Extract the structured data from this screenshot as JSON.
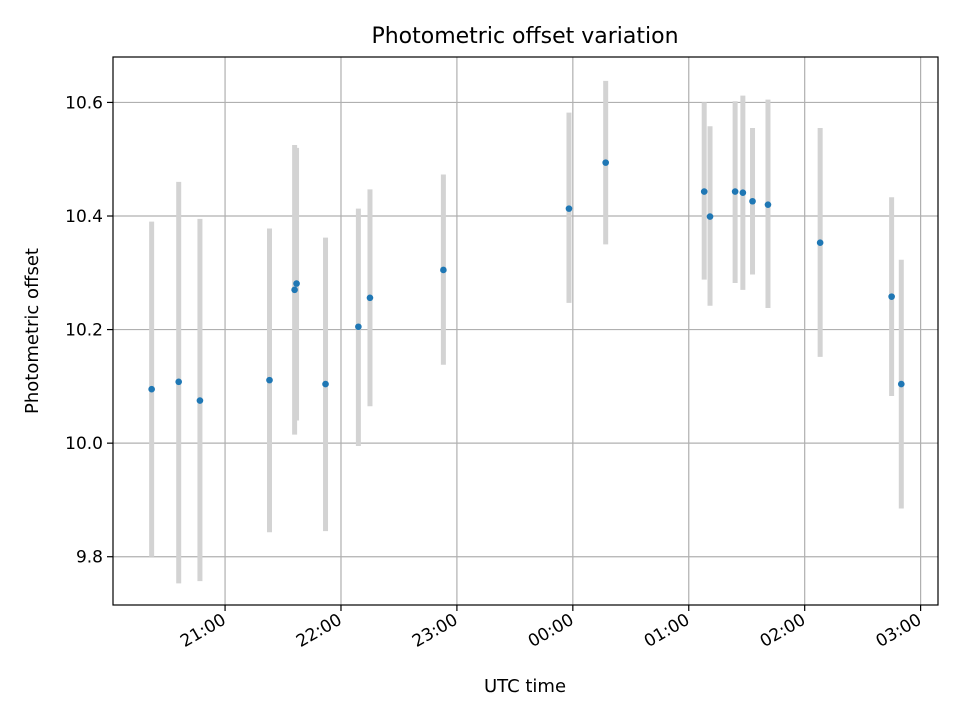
{
  "chart_data": {
    "type": "scatter",
    "title": "Photometric offset variation",
    "xlabel": "UTC time",
    "ylabel": "Photometric offset",
    "grid": true,
    "xlim": [
      "20:02",
      "03:09"
    ],
    "ylim": [
      9.715,
      10.68
    ],
    "x_ticks": [
      "21:00",
      "22:00",
      "23:00",
      "00:00",
      "01:00",
      "02:00",
      "03:00"
    ],
    "y_ticks": [
      9.8,
      10.0,
      10.2,
      10.4,
      10.6
    ],
    "y_tick_labels": [
      "9.8",
      "10.0",
      "10.2",
      "10.4",
      "10.6"
    ],
    "marker_color": "#1f77b4",
    "errorbar_color": "#d3d3d3",
    "points": [
      {
        "t": "20:22",
        "y": 10.095,
        "err_low": 9.8,
        "err_high": 10.39
      },
      {
        "t": "20:36",
        "y": 10.108,
        "err_low": 9.753,
        "err_high": 10.46
      },
      {
        "t": "20:47",
        "y": 10.075,
        "err_low": 9.757,
        "err_high": 10.395
      },
      {
        "t": "21:23",
        "y": 10.111,
        "err_low": 9.843,
        "err_high": 10.378
      },
      {
        "t": "21:36",
        "y": 10.27,
        "err_low": 10.015,
        "err_high": 10.525
      },
      {
        "t": "21:37",
        "y": 10.281,
        "err_low": 10.04,
        "err_high": 10.52
      },
      {
        "t": "21:52",
        "y": 10.104,
        "err_low": 9.845,
        "err_high": 10.362
      },
      {
        "t": "22:09",
        "y": 10.205,
        "err_low": 9.995,
        "err_high": 10.413
      },
      {
        "t": "22:15",
        "y": 10.256,
        "err_low": 10.065,
        "err_high": 10.447
      },
      {
        "t": "22:53",
        "y": 10.305,
        "err_low": 10.138,
        "err_high": 10.473
      },
      {
        "t": "23:58",
        "y": 10.413,
        "err_low": 10.247,
        "err_high": 10.582
      },
      {
        "t": "00:17",
        "y": 10.494,
        "err_low": 10.35,
        "err_high": 10.638
      },
      {
        "t": "01:08",
        "y": 10.443,
        "err_low": 10.288,
        "err_high": 10.6
      },
      {
        "t": "01:11",
        "y": 10.399,
        "err_low": 10.242,
        "err_high": 10.558
      },
      {
        "t": "01:24",
        "y": 10.443,
        "err_low": 10.282,
        "err_high": 10.602
      },
      {
        "t": "01:28",
        "y": 10.441,
        "err_low": 10.27,
        "err_high": 10.612
      },
      {
        "t": "01:33",
        "y": 10.426,
        "err_low": 10.297,
        "err_high": 10.555
      },
      {
        "t": "01:41",
        "y": 10.42,
        "err_low": 10.238,
        "err_high": 10.605
      },
      {
        "t": "02:08",
        "y": 10.353,
        "err_low": 10.152,
        "err_high": 10.555
      },
      {
        "t": "02:45",
        "y": 10.258,
        "err_low": 10.083,
        "err_high": 10.433
      },
      {
        "t": "02:50",
        "y": 10.104,
        "err_low": 9.885,
        "err_high": 10.323
      }
    ]
  }
}
